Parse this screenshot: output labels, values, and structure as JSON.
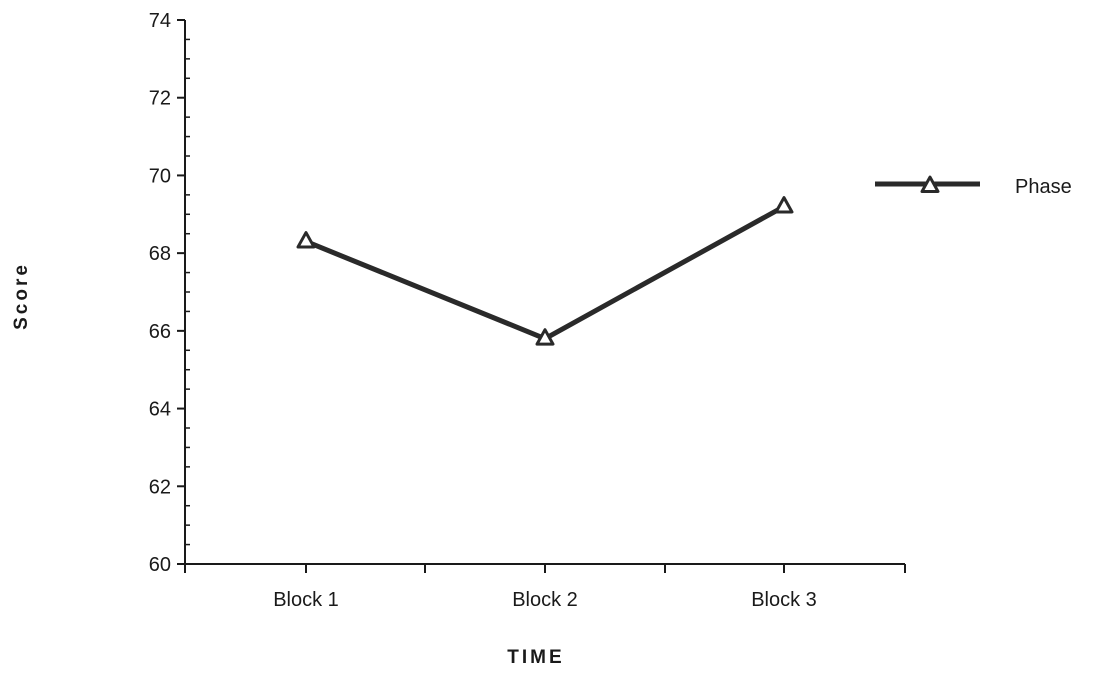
{
  "chart_data": {
    "type": "line",
    "title": "",
    "xlabel": "TIME",
    "ylabel": "Score",
    "categories": [
      "Block 1",
      "Block 2",
      "Block 3"
    ],
    "series": [
      {
        "name": "Phase",
        "marker": "triangle",
        "values": [
          68.3,
          65.8,
          69.2
        ]
      }
    ],
    "ylim": [
      60,
      74
    ],
    "yticks": [
      "60",
      "62",
      "64",
      "66",
      "68",
      "70",
      "72",
      "74"
    ],
    "y_minor_step": 0.5,
    "grid": false,
    "legend": "right",
    "colors": {
      "line": "#2a2a2a",
      "axis": "#1a1a1a",
      "background": "#ffffff"
    }
  }
}
